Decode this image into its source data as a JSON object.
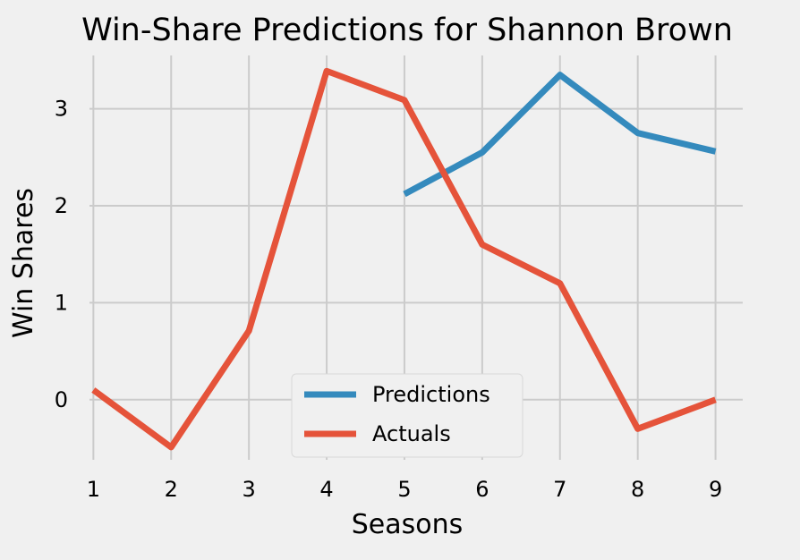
{
  "chart_data": {
    "type": "line",
    "title": "Win-Share Predictions for Shannon Brown",
    "xlabel": "Seasons",
    "ylabel": "Win Shares",
    "x_ticks": [
      "1",
      "2",
      "3",
      "4",
      "5",
      "6",
      "7",
      "8",
      "9"
    ],
    "y_ticks": [
      "0",
      "1",
      "2",
      "3"
    ],
    "xlim": [
      0.95,
      9.35
    ],
    "ylim": [
      -0.62,
      3.55
    ],
    "grid": true,
    "legend_position": "lower-center",
    "series": [
      {
        "name": "Predictions",
        "color": "#348abd",
        "x": [
          5,
          6,
          7,
          8,
          9
        ],
        "y": [
          2.12,
          2.55,
          3.35,
          2.75,
          2.56
        ]
      },
      {
        "name": "Actuals",
        "color": "#e5533a",
        "x": [
          1,
          2,
          3,
          4,
          5,
          6,
          7,
          8,
          9
        ],
        "y": [
          0.1,
          -0.49,
          0.71,
          3.39,
          3.09,
          1.6,
          1.2,
          -0.3,
          0.0
        ]
      }
    ]
  }
}
